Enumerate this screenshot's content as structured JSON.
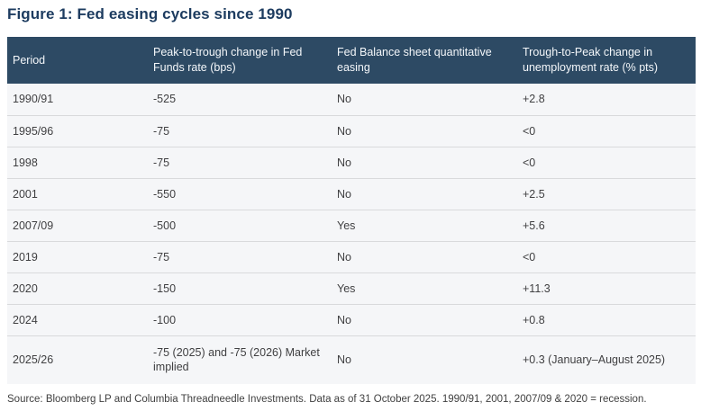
{
  "figure": {
    "title": "Figure 1: Fed easing cycles since 1990",
    "source": "Source: Bloomberg LP and Columbia Threadneedle Investments. Data as of 31 October 2025. 1990/91, 2001, 2007/09 & 2020 = recession."
  },
  "chart_data": {
    "type": "table",
    "title": "Figure 1: Fed easing cycles since 1990",
    "columns": [
      "Period",
      "Peak-to-trough change in Fed Funds rate (bps)",
      "Fed Balance sheet quantitative easing",
      "Trough-to-Peak change in unemployment rate (% pts)"
    ],
    "rows": [
      [
        "1990/91",
        "-525",
        "No",
        "+2.8"
      ],
      [
        "1995/96",
        "-75",
        "No",
        "<0"
      ],
      [
        "1998",
        "-75",
        "No",
        "<0"
      ],
      [
        "2001",
        "-550",
        "No",
        "+2.5"
      ],
      [
        "2007/09",
        "-500",
        "Yes",
        "+5.6"
      ],
      [
        "2019",
        "-75",
        "No",
        "<0"
      ],
      [
        "2020",
        "-150",
        "Yes",
        "+11.3"
      ],
      [
        "2024",
        "-100",
        "No",
        "+0.8"
      ],
      [
        "2025/26",
        "-75 (2025) and -75 (2026) Market implied",
        "No",
        "+0.3 (January–August 2025)"
      ]
    ],
    "recession_periods": [
      "1990/91",
      "2001",
      "2007/09",
      "2020"
    ],
    "source": "Source: Bloomberg LP and Columbia Threadneedle Investments. Data as of 31 October 2025. 1990/91, 2001, 2007/09 & 2020 = recession.",
    "layout": {
      "header_position": "top",
      "grid": "horizontal-rules-between-rows"
    }
  },
  "colors": {
    "header_bg": "#2d4a64",
    "header_text": "#f4f7fa",
    "row_bg": "#f5f6f8",
    "row_divider": "#d9dadc",
    "body_text": "#404042",
    "title_text": "#1d3c60",
    "source_text": "#404040",
    "page_bg": "#ffffff"
  }
}
